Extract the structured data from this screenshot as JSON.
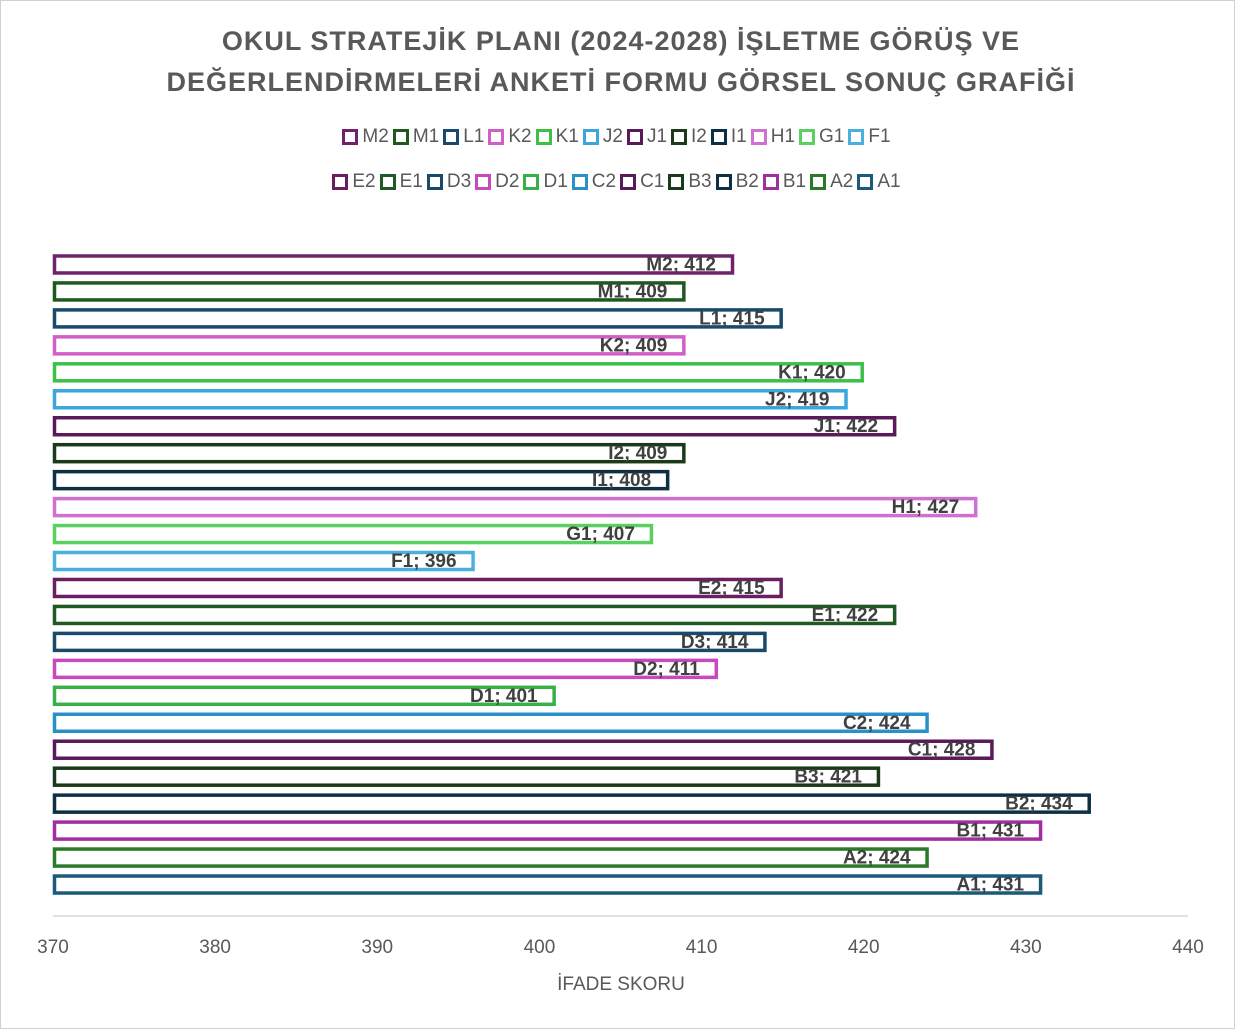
{
  "chart_data": {
    "type": "bar",
    "orientation": "horizontal",
    "title": "OKUL STRATEJİK PLANI (2024-2028) İŞLETME GÖRÜŞ VE DEĞERLENDİRMELERİ ANKETİ FORMU GÖRSEL SONUÇ GRAFİĞİ",
    "xlabel": "İFADE SKORU",
    "xlim": [
      370,
      440
    ],
    "xticks": [
      370,
      380,
      390,
      400,
      410,
      420,
      430,
      440
    ],
    "legend": "top",
    "series": [
      {
        "name": "M2",
        "color": "#70226b",
        "values": [
          412
        ],
        "value_labels": [
          "M2; 412"
        ]
      },
      {
        "name": "M1",
        "color": "#1e5a1e",
        "values": [
          409
        ],
        "value_labels": [
          "M1; 409"
        ]
      },
      {
        "name": "L1",
        "color": "#1a4a6b",
        "values": [
          415
        ],
        "value_labels": [
          "L1; 415"
        ]
      },
      {
        "name": "K2",
        "color": "#d060c8",
        "values": [
          409
        ],
        "value_labels": [
          "K2; 409"
        ]
      },
      {
        "name": "K1",
        "color": "#3cc04a",
        "values": [
          420
        ],
        "value_labels": [
          "K1; 420"
        ]
      },
      {
        "name": "J2",
        "color": "#3aa6dc",
        "values": [
          419
        ],
        "value_labels": [
          "J2; 419"
        ]
      },
      {
        "name": "J1",
        "color": "#5a1a5a",
        "values": [
          422
        ],
        "value_labels": [
          "J1; 422"
        ]
      },
      {
        "name": "I2",
        "color": "#1a3a1a",
        "values": [
          409
        ],
        "value_labels": [
          "I2; 409"
        ]
      },
      {
        "name": "I1",
        "color": "#0e2f44",
        "values": [
          408
        ],
        "value_labels": [
          "I1; 408"
        ]
      },
      {
        "name": "H1",
        "color": "#d070d0",
        "values": [
          427
        ],
        "value_labels": [
          "H1; 427"
        ]
      },
      {
        "name": "G1",
        "color": "#5ad060",
        "values": [
          407
        ],
        "value_labels": [
          "G1; 407"
        ]
      },
      {
        "name": "F1",
        "color": "#4ab0e0",
        "values": [
          396
        ],
        "value_labels": [
          "F1; 396"
        ]
      },
      {
        "name": "E2",
        "color": "#6a2060",
        "values": [
          415
        ],
        "value_labels": [
          "E2; 415"
        ]
      },
      {
        "name": "E1",
        "color": "#1f5a24",
        "values": [
          422
        ],
        "value_labels": [
          "E1; 422"
        ]
      },
      {
        "name": "D3",
        "color": "#1a4a6a",
        "values": [
          414
        ],
        "value_labels": [
          "D3; 414"
        ]
      },
      {
        "name": "D2",
        "color": "#c848c0",
        "values": [
          411
        ],
        "value_labels": [
          "D2; 411"
        ]
      },
      {
        "name": "D1",
        "color": "#38b048",
        "values": [
          401
        ],
        "value_labels": [
          "D1; 401"
        ]
      },
      {
        "name": "C2",
        "color": "#2a90c8",
        "values": [
          424
        ],
        "value_labels": [
          "C2; 424"
        ]
      },
      {
        "name": "C1",
        "color": "#5a1a5a",
        "values": [
          428
        ],
        "value_labels": [
          "C1; 428"
        ]
      },
      {
        "name": "B3",
        "color": "#1a3a1a",
        "values": [
          421
        ],
        "value_labels": [
          "B3; 421"
        ]
      },
      {
        "name": "B2",
        "color": "#0e2f44",
        "values": [
          434
        ],
        "value_labels": [
          "B2; 434"
        ]
      },
      {
        "name": "B1",
        "color": "#a030a0",
        "values": [
          431
        ],
        "value_labels": [
          "B1; 431"
        ]
      },
      {
        "name": "A2",
        "color": "#2a7a2a",
        "values": [
          424
        ],
        "value_labels": [
          "A2; 424"
        ]
      },
      {
        "name": "A1",
        "color": "#1a5a7a",
        "values": [
          431
        ],
        "value_labels": [
          "A1; 431"
        ]
      }
    ]
  }
}
